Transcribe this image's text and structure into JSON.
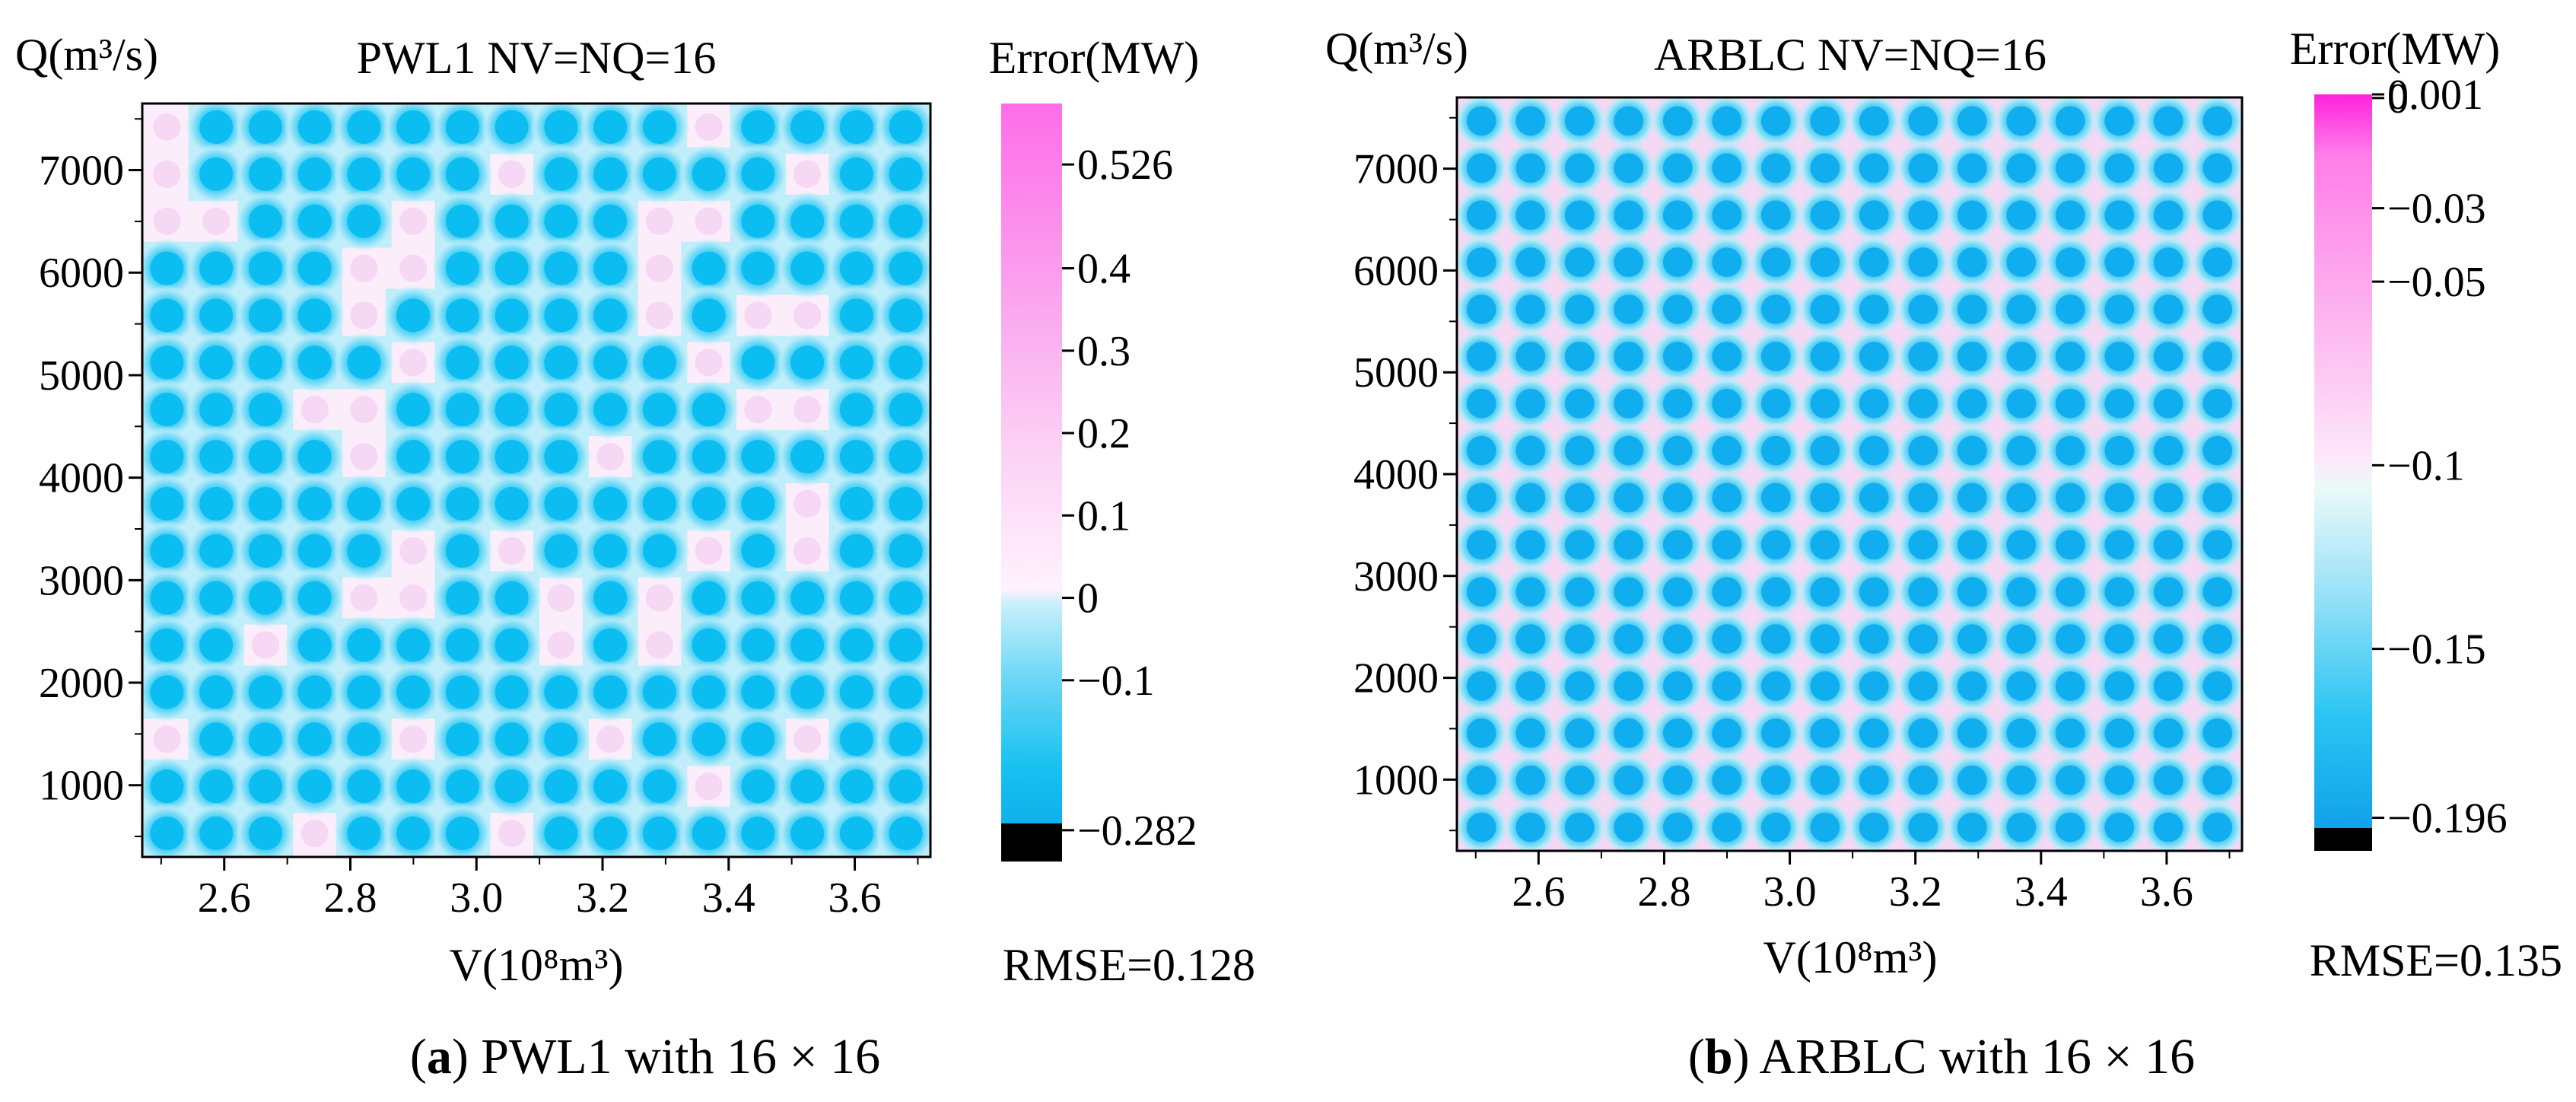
{
  "chart_data": [
    {
      "type": "heatmap",
      "title": "PWL1 NV=NQ=16",
      "ylabel": "Q(m³/s)",
      "xlabel": "V(10⁸m³)",
      "xlim": [
        2.47,
        3.72
      ],
      "ylim": [
        300,
        7650
      ],
      "xticks": [
        "2.6",
        "2.8",
        "3.0",
        "3.2",
        "3.4",
        "3.6"
      ],
      "yticks": [
        "1000",
        "2000",
        "3000",
        "4000",
        "5000",
        "6000",
        "7000"
      ],
      "grid_nodes": 16,
      "colorbar": {
        "title": "Error(MW)",
        "range": [
          -0.32,
          0.6
        ],
        "tick_labels": [
          "0.526",
          "0.4",
          "0.3",
          "0.2",
          "0.1",
          "0",
          "−0.1",
          "−0.282"
        ],
        "tick_values": [
          0.526,
          0.4,
          0.3,
          0.2,
          0.1,
          0,
          -0.1,
          -0.282
        ]
      },
      "rmse": "RMSE=0.128",
      "caption_letter": "a",
      "caption_text": " PWL1 with 16 × 16"
    },
    {
      "type": "heatmap",
      "title": "ARBLC NV=NQ=16",
      "ylabel": "Q(m³/s)",
      "xlabel": "V(10⁸m³)",
      "xlim": [
        2.47,
        3.72
      ],
      "ylim": [
        300,
        7700
      ],
      "xticks": [
        "2.6",
        "2.8",
        "3.0",
        "3.2",
        "3.4",
        "3.6"
      ],
      "yticks": [
        "1000",
        "2000",
        "3000",
        "4000",
        "5000",
        "6000",
        "7000"
      ],
      "grid_nodes": 16,
      "colorbar": {
        "title": "Error(MW)",
        "range": [
          -0.205,
          0.001
        ],
        "tick_labels": [
          "0.001",
          "0",
          "−0.03",
          "−0.05",
          "−0.1",
          "−0.15",
          "−0.196"
        ],
        "tick_values": [
          0.001,
          0,
          -0.03,
          -0.05,
          -0.1,
          -0.15,
          -0.196
        ]
      },
      "rmse": "RMSE=0.135",
      "caption_letter": "b",
      "caption_text": " ARBLC with 16 × 16"
    }
  ],
  "colors": {
    "pink_max": "#ff5ce6",
    "pink_light": "#f8d6f4",
    "cyan_light": "#b8ecf8",
    "cyan": "#26c8f2",
    "blue_dark": "#0b9ae8",
    "black": "#000000"
  }
}
